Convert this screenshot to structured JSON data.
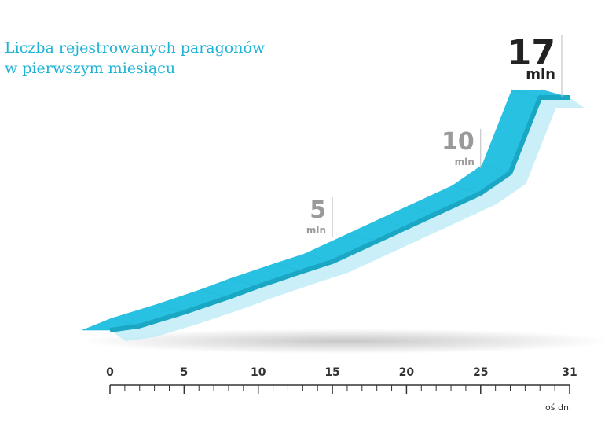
{
  "colors": {
    "ribbon_top": "#29c1e2",
    "ribbon_front": "#1aa7c3",
    "ribbon_shadow": "#bdebf6",
    "title": "#1fb4d6",
    "callout_major": "#222222",
    "callout_minor": "#9a9a9a",
    "axis": "#333333"
  },
  "chart_data": {
    "type": "area",
    "title_lines": [
      "Liczba rejestrowanych paragonów",
      "w pierwszym miesiącu"
    ],
    "xlabel": "oś dni",
    "ylabel": "",
    "xlim": [
      0,
      31
    ],
    "ylim": [
      0,
      17
    ],
    "x_ticks": [
      "0",
      "5",
      "10",
      "15",
      "20",
      "25",
      "31"
    ],
    "series": [
      {
        "x": [
          0,
          2,
          5,
          8,
          10,
          13,
          15,
          18,
          20,
          22,
          25,
          27,
          29,
          31
        ],
        "y": [
          0,
          0.3,
          1.3,
          2.4,
          3.2,
          4.3,
          5.0,
          6.5,
          7.5,
          8.5,
          10.0,
          11.5,
          17,
          17
        ]
      }
    ],
    "annotations": [
      {
        "x": 15,
        "y": 5,
        "value": "5",
        "unit": "mln",
        "style": "minor"
      },
      {
        "x": 25,
        "y": 10,
        "value": "10",
        "unit": "mln",
        "style": "minor"
      },
      {
        "x": 31,
        "y": 17,
        "value": "17",
        "unit": "mln",
        "style": "major"
      }
    ]
  }
}
